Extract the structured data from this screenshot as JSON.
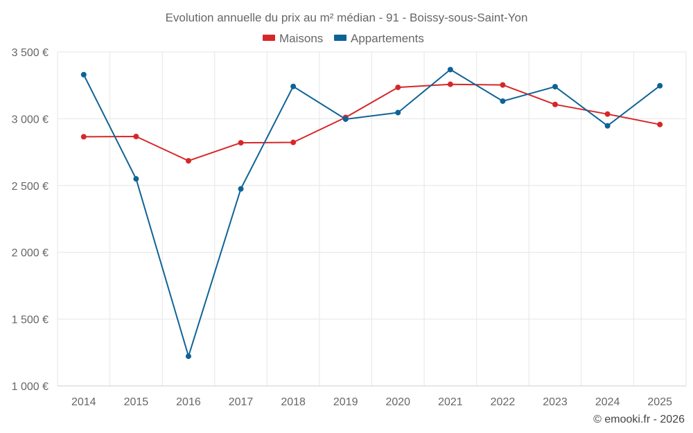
{
  "chart_data": {
    "type": "line",
    "title": "Evolution annuelle du prix au m² médian - 91 - Boissy-sous-Saint-Yon",
    "categories": [
      "2014",
      "2015",
      "2016",
      "2017",
      "2018",
      "2019",
      "2020",
      "2021",
      "2022",
      "2023",
      "2024",
      "2025"
    ],
    "series": [
      {
        "name": "Maisons",
        "color": "#d62728",
        "values": [
          2865,
          2867,
          2685,
          2820,
          2823,
          3010,
          3235,
          3258,
          3253,
          3107,
          3035,
          2957
        ]
      },
      {
        "name": "Appartements",
        "color": "#0e6396",
        "values": [
          3330,
          2550,
          1222,
          2475,
          3242,
          2997,
          3046,
          3368,
          3132,
          3240,
          2947,
          3247
        ]
      }
    ],
    "ylim": [
      1000,
      3500
    ],
    "yticks": [
      {
        "value": 1000,
        "label": "1 000 €"
      },
      {
        "value": 1500,
        "label": "1 500 €"
      },
      {
        "value": 2000,
        "label": "2 000 €"
      },
      {
        "value": 2500,
        "label": "2 500 €"
      },
      {
        "value": 3000,
        "label": "3 000 €"
      },
      {
        "value": 3500,
        "label": "3 500 €"
      }
    ],
    "xlabel": "",
    "ylabel": "",
    "grid": true,
    "legend_position": "top-center"
  },
  "credit": "© emooki.fr - 2026"
}
